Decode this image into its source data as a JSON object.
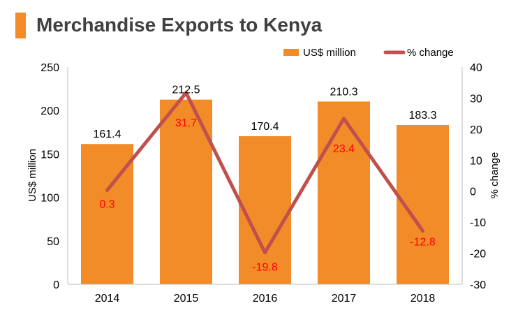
{
  "title": "Merchandise Exports to Kenya",
  "colors": {
    "bar": "#F28C28",
    "line": "#C0504D",
    "title_bar": "#F28C28",
    "line_label": "#FF0000",
    "title_text": "#404040"
  },
  "chart_data": {
    "type": "bar",
    "title": "Merchandise Exports to Kenya",
    "categories": [
      "2014",
      "2015",
      "2016",
      "2017",
      "2018"
    ],
    "series": [
      {
        "name": "US$ million",
        "type": "bar",
        "axis": "left",
        "values": [
          161.4,
          212.5,
          170.4,
          210.3,
          183.3
        ],
        "labels": [
          "161.4",
          "212.5",
          "170.4",
          "210.3",
          "183.3"
        ]
      },
      {
        "name": "% change",
        "type": "line",
        "axis": "right",
        "values": [
          0.3,
          31.7,
          -19.8,
          23.4,
          -12.8
        ],
        "labels": [
          "0.3",
          "31.7",
          "-19.8",
          "23.4",
          "-12.8"
        ]
      }
    ],
    "ylabel": "US$ million",
    "y2label": "% change",
    "ylim": [
      0,
      250
    ],
    "y2lim": [
      -30,
      40
    ],
    "yticks": [
      "0",
      "50",
      "100",
      "150",
      "200",
      "250"
    ],
    "y2ticks": [
      "-30",
      "-20",
      "-10",
      "0",
      "10",
      "20",
      "30",
      "40"
    ],
    "grid": false,
    "legend": "top-right"
  }
}
